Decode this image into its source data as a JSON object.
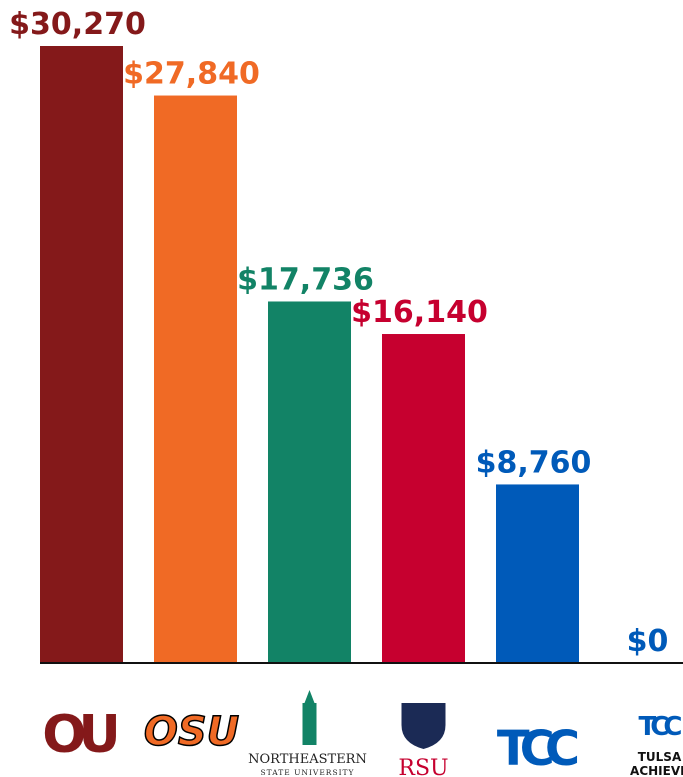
{
  "chart_data": {
    "type": "bar",
    "categories": [
      [
        "OU"
      ],
      [
        "OSU"
      ],
      [
        "NORTHEASTERN",
        "STATE UNIVERSITY"
      ],
      [
        "RSU"
      ],
      [
        "TCC"
      ],
      [
        "TCC",
        "TULSA",
        "ACHIEVES"
      ]
    ],
    "values": [
      30270,
      27840,
      17736,
      16140,
      8760,
      0
    ],
    "value_labels": [
      "$30,270",
      "$27,840",
      "$17,736",
      "$16,140",
      "$8,760",
      "$0"
    ],
    "colors": [
      "#84191a",
      "#f06a25",
      "#128366",
      "#c6002f",
      "#005ab9",
      "#005ab9"
    ]
  }
}
